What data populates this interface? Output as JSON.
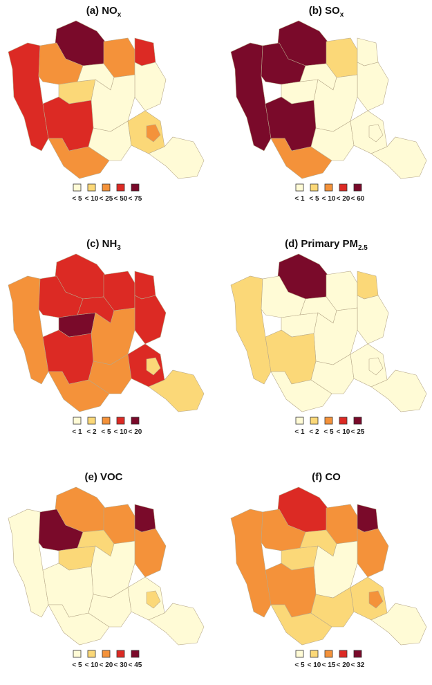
{
  "colors": [
    "#fffbd6",
    "#fbd878",
    "#f4923a",
    "#dc2a24",
    "#7a0a2a"
  ],
  "panels": [
    {
      "title": "(a) NO",
      "title_sub": "x",
      "legend": [
        "< 5",
        "< 10",
        "< 25",
        "< 50",
        "< 75"
      ],
      "region_classes": [
        3,
        4,
        2,
        2,
        3,
        0,
        1,
        0,
        0,
        3,
        2,
        0,
        1,
        2,
        0
      ]
    },
    {
      "title": "(b) SO",
      "title_sub": "x",
      "legend": [
        "< 1",
        "< 5",
        "< 10",
        "< 20",
        "< 60"
      ],
      "region_classes": [
        4,
        4,
        4,
        1,
        0,
        0,
        0,
        0,
        0,
        4,
        2,
        0,
        0,
        0,
        0
      ]
    },
    {
      "title": "(c) NH",
      "title_sub": "3",
      "legend": [
        "< 1",
        "< 2",
        "< 5",
        "< 10",
        "< 20"
      ],
      "region_classes": [
        2,
        3,
        3,
        3,
        3,
        3,
        4,
        3,
        2,
        3,
        2,
        2,
        3,
        1,
        1
      ]
    },
    {
      "title": "(d) Primary PM",
      "title_sub": "2.5",
      "legend": [
        "< 1",
        "< 2",
        "< 5",
        "< 10",
        "< 25"
      ],
      "region_classes": [
        1,
        4,
        0,
        0,
        1,
        0,
        0,
        0,
        0,
        1,
        0,
        0,
        0,
        0,
        0
      ]
    },
    {
      "title": "(e) VOC",
      "legend": [
        "< 5",
        "< 10",
        "< 20",
        "< 30",
        "< 45"
      ],
      "region_classes": [
        0,
        2,
        4,
        2,
        4,
        2,
        1,
        1,
        0,
        0,
        0,
        0,
        0,
        1,
        0
      ]
    },
    {
      "title": "(f) CO",
      "legend": [
        "< 5",
        "< 10",
        "< 15",
        "< 20",
        "< 32"
      ],
      "region_classes": [
        2,
        3,
        2,
        2,
        4,
        2,
        1,
        1,
        0,
        2,
        1,
        1,
        1,
        2,
        0
      ]
    }
  ]
}
